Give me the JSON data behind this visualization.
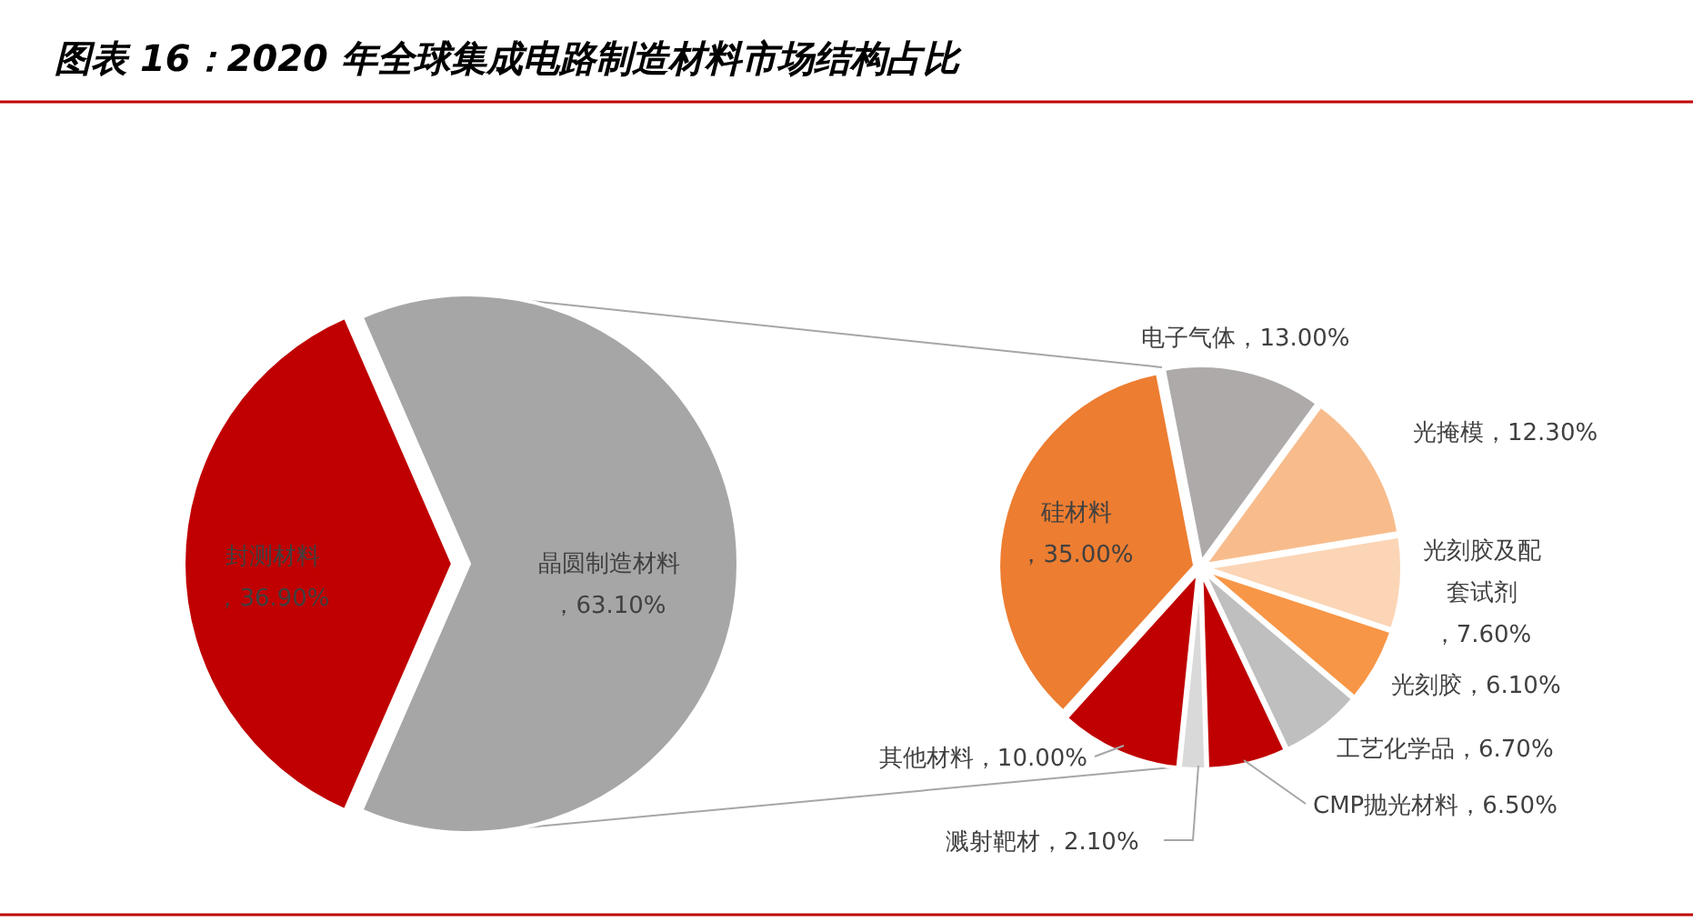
{
  "chart_data": [
    {
      "type": "pie",
      "title": "图表 16：2020 年全球集成电路制造材料市场结构占比",
      "categories": [
        "封测材料",
        "晶圆制造材料"
      ],
      "values": [
        36.9,
        63.1
      ],
      "colors": [
        "#c00000",
        "#a6a6a6"
      ],
      "value_labels": [
        "，36.90%",
        "，63.10%"
      ]
    },
    {
      "type": "pie",
      "categories": [
        "电子气体",
        "光掩模",
        "光刻胶及配套试剂",
        "光刻胶",
        "工艺化学品",
        "CMP抛光材料",
        "溅射靶材",
        "其他材料",
        "硅材料"
      ],
      "values": [
        13.0,
        12.3,
        7.6,
        6.1,
        6.7,
        6.5,
        2.1,
        10.0,
        35.0
      ],
      "colors": [
        "#aeaaaa",
        "#f8bc8c",
        "#fbd5b5",
        "#f79646",
        "#bfbfbf",
        "#c00000",
        "#d9d9d9",
        "#c00000",
        "#ed7d31"
      ],
      "value_labels": [
        "13.00%",
        "12.30%",
        "，7.60%",
        "6.10%",
        "6.70%",
        "6.50%",
        "2.10%",
        "10.00%",
        "，35.00%"
      ]
    }
  ]
}
